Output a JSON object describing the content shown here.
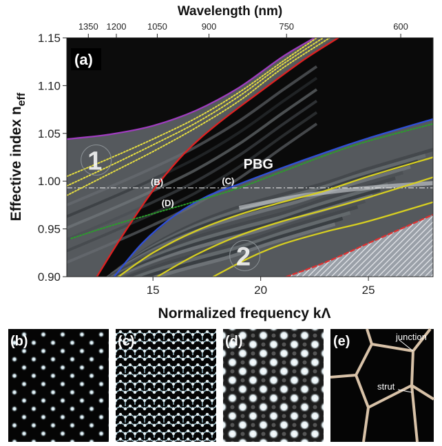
{
  "chart_data": {
    "type": "line",
    "panel_label": "(a)",
    "xlabel": "Normalized frequency kΛ",
    "ylabel": "Effective index n",
    "ylabel_sub": "eff",
    "top_xlabel": "Wavelength (nm)",
    "xlim": [
      11,
      28
    ],
    "ylim": [
      0.9,
      1.15
    ],
    "x_ticks": [
      15,
      20,
      25
    ],
    "y_ticks": [
      "0.90",
      "0.95",
      "1.00",
      "1.05",
      "1.10",
      "1.15"
    ],
    "top_ticks": [
      {
        "label": "1350",
        "x": 12.0
      },
      {
        "label": "1200",
        "x": 13.3
      },
      {
        "label": "1050",
        "x": 15.2
      },
      {
        "label": "900",
        "x": 17.6
      },
      {
        "label": "750",
        "x": 21.2
      },
      {
        "label": "600",
        "x": 26.5
      }
    ],
    "annotations": [
      {
        "text": "PBG",
        "x": 19.2,
        "y": 1.013
      },
      {
        "text": "1",
        "x": 12.3,
        "y": 1.012
      },
      {
        "text": "2",
        "x": 19.2,
        "y": 0.912
      },
      {
        "text": "(B)",
        "x": 14.9,
        "y": 0.996
      },
      {
        "text": "(C)",
        "x": 18.2,
        "y": 0.997
      },
      {
        "text": "(D)",
        "x": 15.4,
        "y": 0.974
      }
    ],
    "reference_line": {
      "y": 0.993
    },
    "series": [
      {
        "color": "#a03cc0",
        "style": "solid",
        "x": [
          11,
          13,
          15,
          17,
          19,
          21,
          22.5
        ],
        "y": [
          1.044,
          1.049,
          1.058,
          1.074,
          1.098,
          1.13,
          1.15
        ]
      },
      {
        "color": "#e8e040",
        "style": "dotted",
        "x": [
          11,
          13,
          15,
          17,
          19,
          21,
          22.6
        ],
        "y": [
          1.005,
          1.024,
          1.044,
          1.066,
          1.093,
          1.125,
          1.15
        ]
      },
      {
        "color": "#e8e040",
        "style": "dotted",
        "x": [
          11,
          13,
          15,
          17,
          19,
          21,
          22.9
        ],
        "y": [
          0.995,
          1.016,
          1.038,
          1.061,
          1.089,
          1.122,
          1.15
        ]
      },
      {
        "color": "#e8e040",
        "style": "dotted",
        "x": [
          11,
          13,
          15,
          17,
          19,
          21,
          23.2
        ],
        "y": [
          0.985,
          1.008,
          1.031,
          1.056,
          1.084,
          1.118,
          1.15
        ]
      },
      {
        "color": "#e02020",
        "style": "solid",
        "x": [
          12.4,
          13.5,
          15,
          16.5,
          18,
          20,
          22,
          23.6
        ],
        "y": [
          0.9,
          0.94,
          0.99,
          1.03,
          1.06,
          1.094,
          1.127,
          1.15
        ]
      },
      {
        "color": "#2f4fd8",
        "style": "solid",
        "x": [
          13.2,
          14.5,
          16,
          17.5,
          19,
          21,
          23,
          25,
          28
        ],
        "y": [
          0.9,
          0.935,
          0.964,
          0.984,
          0.997,
          1.014,
          1.03,
          1.045,
          1.065
        ]
      },
      {
        "color": "#2aa02a",
        "style": "dotted",
        "x": [
          11.2,
          13,
          15,
          17,
          19,
          21,
          23,
          25,
          28
        ],
        "y": [
          0.94,
          0.953,
          0.966,
          0.979,
          0.993,
          1.01,
          1.027,
          1.042,
          1.06
        ]
      },
      {
        "color": "#d8d020",
        "style": "solid",
        "x": [
          13.4,
          15,
          17,
          19,
          21,
          23,
          25,
          28
        ],
        "y": [
          0.9,
          0.925,
          0.948,
          0.965,
          0.978,
          0.99,
          1.005,
          1.025
        ]
      },
      {
        "color": "#d8d020",
        "style": "solid",
        "x": [
          15.2,
          17,
          19,
          21,
          23,
          25,
          28
        ],
        "y": [
          0.9,
          0.923,
          0.943,
          0.958,
          0.97,
          0.983,
          1.004
        ]
      },
      {
        "color": "#d8d020",
        "style": "solid",
        "x": [
          17.8,
          19.5,
          21,
          23,
          25,
          28
        ],
        "y": [
          0.9,
          0.92,
          0.934,
          0.947,
          0.958,
          0.978
        ]
      },
      {
        "color": "#e03030",
        "style": "dashed",
        "x": [
          21.2,
          23,
          25,
          27,
          28
        ],
        "y": [
          0.9,
          0.915,
          0.935,
          0.955,
          0.965
        ]
      }
    ]
  },
  "panels": [
    {
      "label": "(b)"
    },
    {
      "label": "(c)"
    },
    {
      "label": "(d)"
    },
    {
      "label": "(e)",
      "annotations": [
        "junction",
        "strut"
      ]
    }
  ]
}
